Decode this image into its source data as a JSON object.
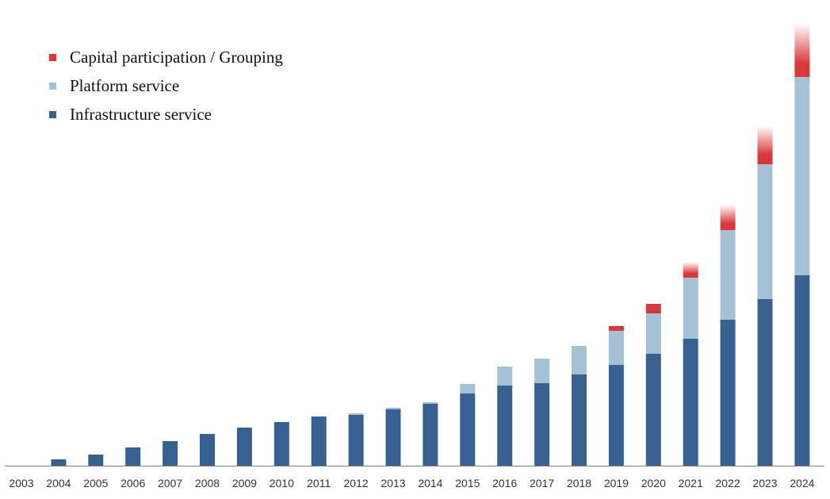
{
  "chart_data": {
    "type": "bar",
    "stacked": true,
    "title": "",
    "xlabel": "",
    "ylabel": "",
    "categories": [
      "2003",
      "2004",
      "2005",
      "2006",
      "2007",
      "2008",
      "2009",
      "2010",
      "2011",
      "2012",
      "2013",
      "2014",
      "2015",
      "2016",
      "2017",
      "2018",
      "2019",
      "2020",
      "2021",
      "2022",
      "2023",
      "2024"
    ],
    "series": [
      {
        "name": "Infrastructure service",
        "color": "#386192",
        "values": [
          0,
          8,
          14,
          23,
          31,
          40,
          48,
          55,
          62,
          64,
          71,
          78,
          91,
          101,
          104,
          115,
          127,
          141,
          160,
          184,
          210,
          240
        ]
      },
      {
        "name": "Platform service",
        "color": "#a6c1d3",
        "values": [
          0,
          0,
          0,
          0,
          0,
          0,
          0,
          0,
          0,
          2,
          2,
          2,
          12,
          24,
          31,
          36,
          43,
          51,
          77,
          113,
          170,
          250
        ]
      },
      {
        "name": "Capital participation / Grouping",
        "color": "#d9383a",
        "values": [
          0,
          0,
          0,
          0,
          0,
          0,
          0,
          0,
          0,
          0,
          0,
          0,
          0,
          0,
          0,
          0,
          6,
          12,
          20,
          32,
          48,
          67
        ]
      }
    ],
    "ylim": [
      0,
      560
    ],
    "grid": false,
    "legend": {
      "position": "top-left",
      "order": [
        "Capital participation / Grouping",
        "Platform service",
        "Infrastructure service"
      ]
    }
  }
}
